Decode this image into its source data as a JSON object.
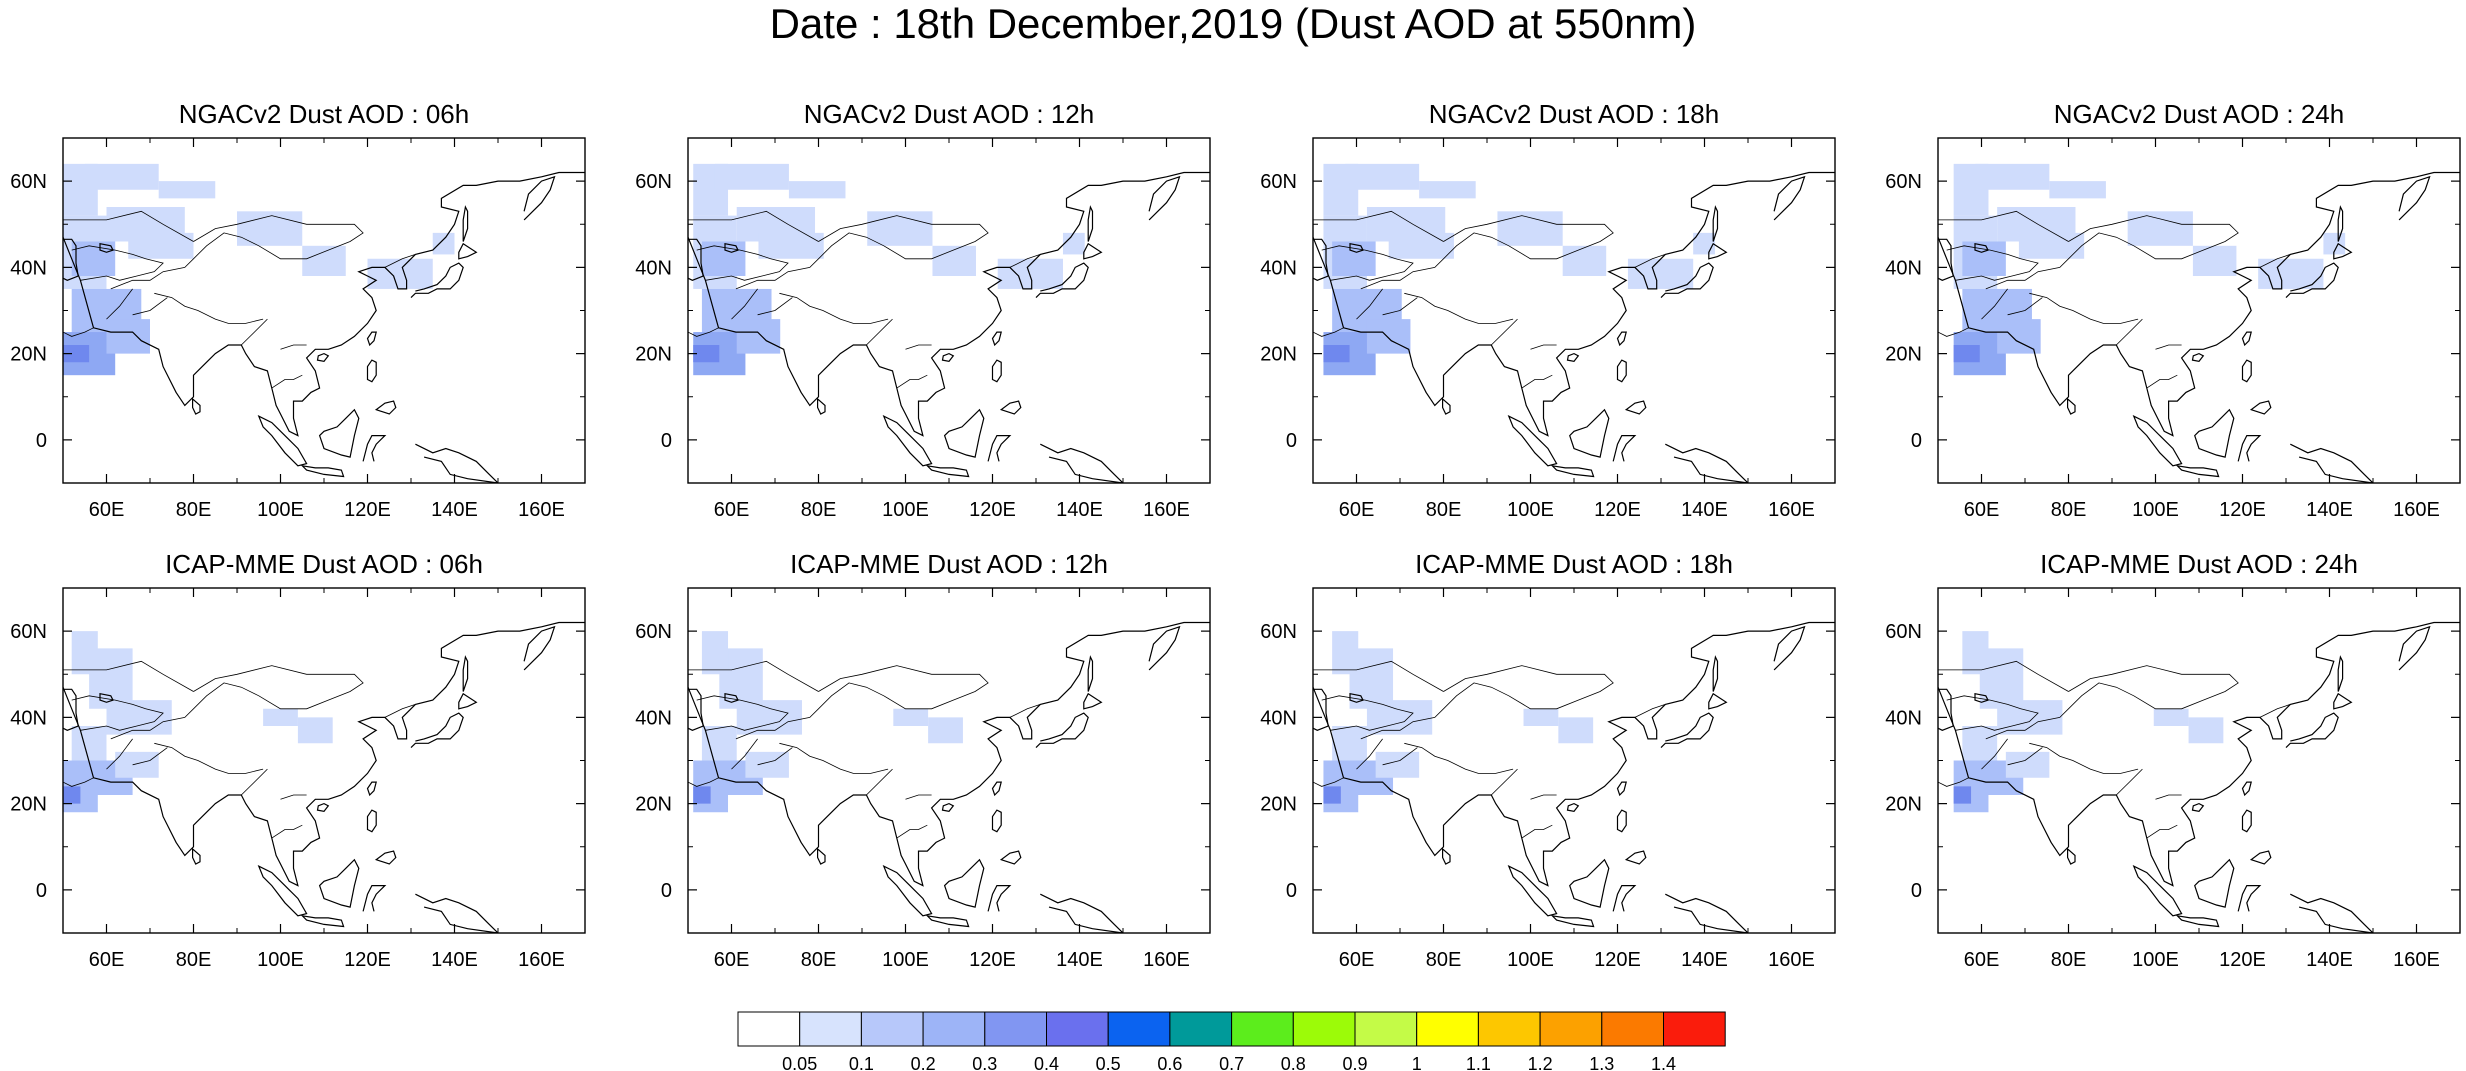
{
  "title": "Date : 18th December,2019 (Dust AOD at 550nm)",
  "map": {
    "lon_range": [
      50,
      170
    ],
    "lat_range": [
      -10,
      70
    ],
    "lon_ticks": [
      "60E",
      "80E",
      "100E",
      "120E",
      "140E",
      "160E"
    ],
    "lat_ticks": [
      "60N",
      "40N",
      "20N",
      "0"
    ],
    "coastline_color": "#000000",
    "fill_colors": {
      "light": "#cfdcfc",
      "medium": "#aabff9",
      "strong": "#8ea8f3",
      "heavy": "#6f88ee"
    }
  },
  "panels": [
    {
      "title": "NGACv2 Dust AOD : 06h"
    },
    {
      "title": "NGACv2 Dust AOD : 12h"
    },
    {
      "title": "NGACv2 Dust AOD : 18h"
    },
    {
      "title": "NGACv2 Dust AOD : 24h"
    },
    {
      "title": "ICAP-MME Dust AOD : 06h"
    },
    {
      "title": "ICAP-MME Dust AOD : 12h"
    },
    {
      "title": "ICAP-MME Dust AOD : 18h"
    },
    {
      "title": "ICAP-MME Dust AOD : 24h"
    }
  ],
  "colorbar": {
    "colors": [
      "#ffffff",
      "#d7e3fd",
      "#b7c8fa",
      "#9db4f7",
      "#8196f2",
      "#6a70ee",
      "#0b63f0",
      "#009a9a",
      "#5ced1c",
      "#9cfb08",
      "#c4fb47",
      "#ffff00",
      "#fdc700",
      "#fca100",
      "#fb7a00",
      "#fa1c0c"
    ],
    "labels": [
      "0.05",
      "0.1",
      "0.2",
      "0.3",
      "0.4",
      "0.5",
      "0.6",
      "0.7",
      "0.8",
      "0.9",
      "1",
      "1.1",
      "1.2",
      "1.3",
      "1.4"
    ]
  }
}
